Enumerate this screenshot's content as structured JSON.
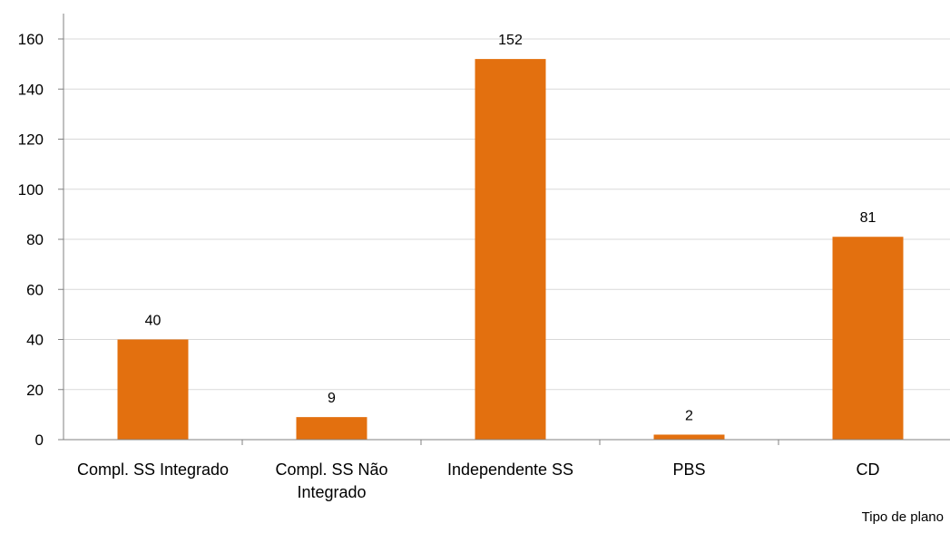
{
  "chart_data": {
    "type": "bar",
    "categories": [
      [
        "Compl. SS Integrado"
      ],
      [
        "Compl. SS Não",
        "Integrado"
      ],
      [
        "Independente SS"
      ],
      [
        "PBS"
      ],
      [
        "CD"
      ]
    ],
    "values": [
      40,
      9,
      152,
      2,
      81
    ],
    "data_labels": [
      "40",
      "9",
      "152",
      "2",
      "81"
    ],
    "title": "",
    "xlabel": "Tipo de plano",
    "ylabel": "",
    "ylim": [
      0,
      170
    ],
    "yticks": [
      0,
      20,
      40,
      60,
      80,
      100,
      120,
      140,
      160
    ],
    "grid": true,
    "legend": "none",
    "colors": {
      "bar": "#E3700F",
      "grid": "#D9D9D9",
      "axis": "#808080"
    }
  }
}
